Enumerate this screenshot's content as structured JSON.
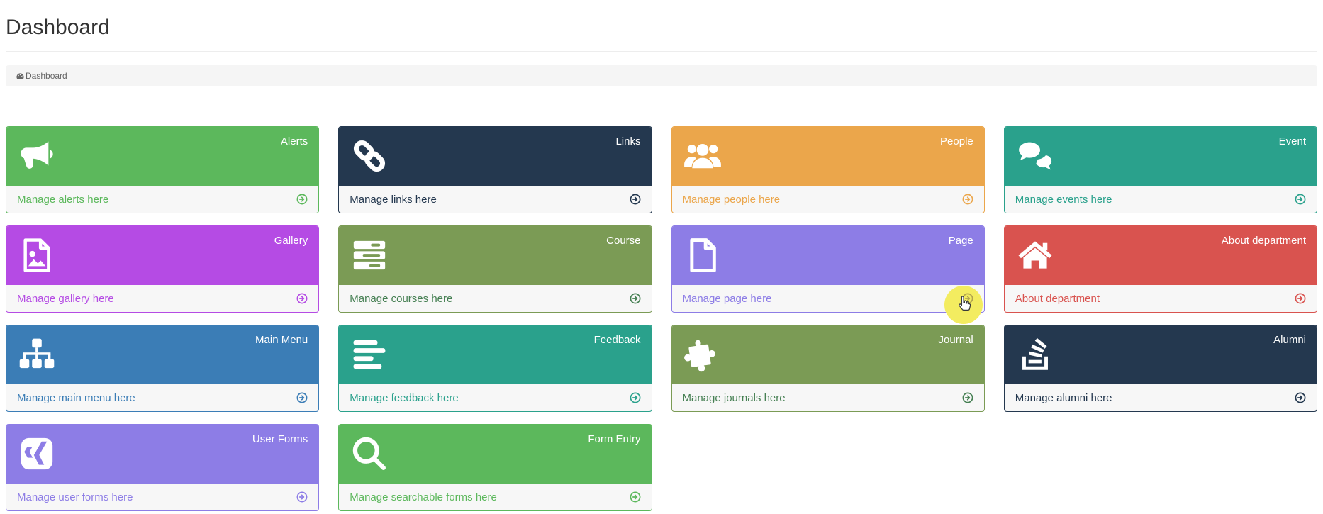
{
  "page": {
    "title": "Dashboard"
  },
  "breadcrumb": {
    "items": [
      {
        "label": "Dashboard",
        "icon": "dashboard-icon",
        "active": true
      }
    ]
  },
  "tile_footer_arrow_icon": "arrow-circle-right-icon",
  "tiles": [
    {
      "title": "Alerts",
      "icon": "bullhorn-icon",
      "color": "#5cb85c",
      "footer_text_color": "#5cb85c",
      "footer_label": "Manage alerts here",
      "highlighted": false
    },
    {
      "title": "Links",
      "icon": "chain-icon",
      "color": "#24384f",
      "footer_text_color": "#24384f",
      "footer_label": "Manage links here",
      "highlighted": false
    },
    {
      "title": "People",
      "icon": "users-icon",
      "color": "#eba64b",
      "footer_text_color": "#eba64b",
      "footer_label": "Manage people here",
      "highlighted": false
    },
    {
      "title": "Event",
      "icon": "comments-icon",
      "color": "#2aa18c",
      "footer_text_color": "#2aa18c",
      "footer_label": "Manage events here",
      "highlighted": false
    },
    {
      "title": "Gallery",
      "icon": "file-image-icon",
      "color": "#b54be4",
      "footer_text_color": "#b54be4",
      "footer_label": "Manage gallery here",
      "highlighted": false
    },
    {
      "title": "Course",
      "icon": "server-icon",
      "color": "#7b9b55",
      "footer_text_color": "#457f52",
      "footer_label": "Manage courses here",
      "highlighted": false
    },
    {
      "title": "Page",
      "icon": "file-icon",
      "color": "#8d7de6",
      "footer_text_color": "#8d7de6",
      "footer_label": "Manage page here",
      "highlighted": true
    },
    {
      "title": "About department",
      "icon": "home-icon",
      "color": "#d9534f",
      "footer_text_color": "#d9534f",
      "footer_label": "About department",
      "highlighted": false
    },
    {
      "title": "Main Menu",
      "icon": "sitemap-icon",
      "color": "#3b7db6",
      "footer_text_color": "#3b7db6",
      "footer_label": "Manage main menu here",
      "highlighted": false
    },
    {
      "title": "Feedback",
      "icon": "align-left-icon",
      "color": "#2aa18c",
      "footer_text_color": "#2aa18c",
      "footer_label": "Manage feedback here",
      "highlighted": false
    },
    {
      "title": "Journal",
      "icon": "puzzle-piece-icon",
      "color": "#7b9b55",
      "footer_text_color": "#457f52",
      "footer_label": "Manage journals here",
      "highlighted": false
    },
    {
      "title": "Alumni",
      "icon": "stack-overflow-icon",
      "color": "#24384f",
      "footer_text_color": "#24384f",
      "footer_label": "Manage alumni here",
      "highlighted": false
    },
    {
      "title": "User Forms",
      "icon": "xing-icon",
      "color": "#8d7de6",
      "footer_text_color": "#8d7de6",
      "footer_label": "Manage user forms here",
      "highlighted": false
    },
    {
      "title": "Form Entry",
      "icon": "search-icon",
      "color": "#5cb85c",
      "footer_text_color": "#5cb85c",
      "footer_label": "Manage searchable forms here",
      "highlighted": false
    }
  ],
  "cursor": {
    "type": "hand-pointer",
    "click_highlight_color": "#f3ec60",
    "over_tile": "Page"
  }
}
